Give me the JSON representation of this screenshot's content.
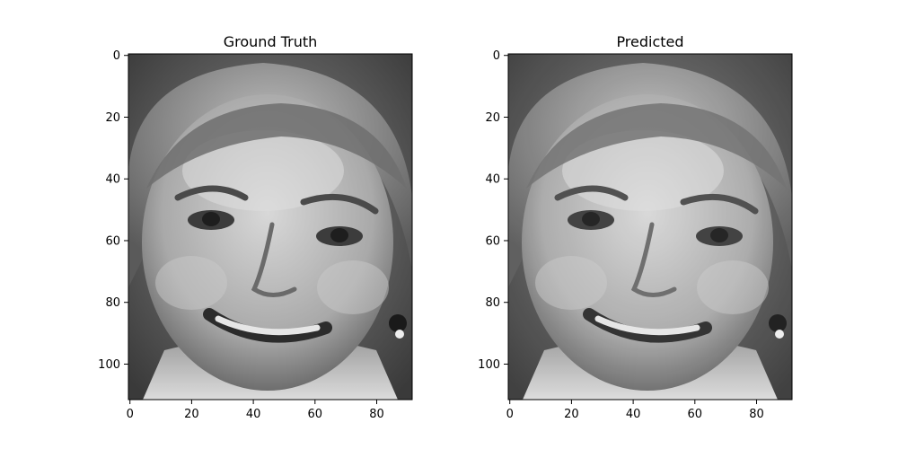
{
  "chart_data": [
    {
      "type": "image",
      "title": "Ground Truth",
      "colormap": "gray",
      "description_of_image": "grayscale face",
      "xlim": [
        -0.5,
        91.5
      ],
      "ylim": [
        111.5,
        -0.5
      ],
      "xticks": [
        0,
        20,
        40,
        60,
        80
      ],
      "yticks": [
        0,
        20,
        40,
        60,
        80,
        100
      ],
      "xlabel": "",
      "ylabel": ""
    },
    {
      "type": "image",
      "title": "Predicted",
      "colormap": "gray",
      "xlim": [
        -0.5,
        91.5
      ],
      "ylim": [
        111.5,
        -0.5
      ],
      "xticks": [
        0,
        20,
        40,
        60,
        80
      ],
      "yticks": [
        0,
        20,
        40,
        60,
        80,
        100
      ],
      "xlabel": "",
      "ylabel": ""
    }
  ]
}
